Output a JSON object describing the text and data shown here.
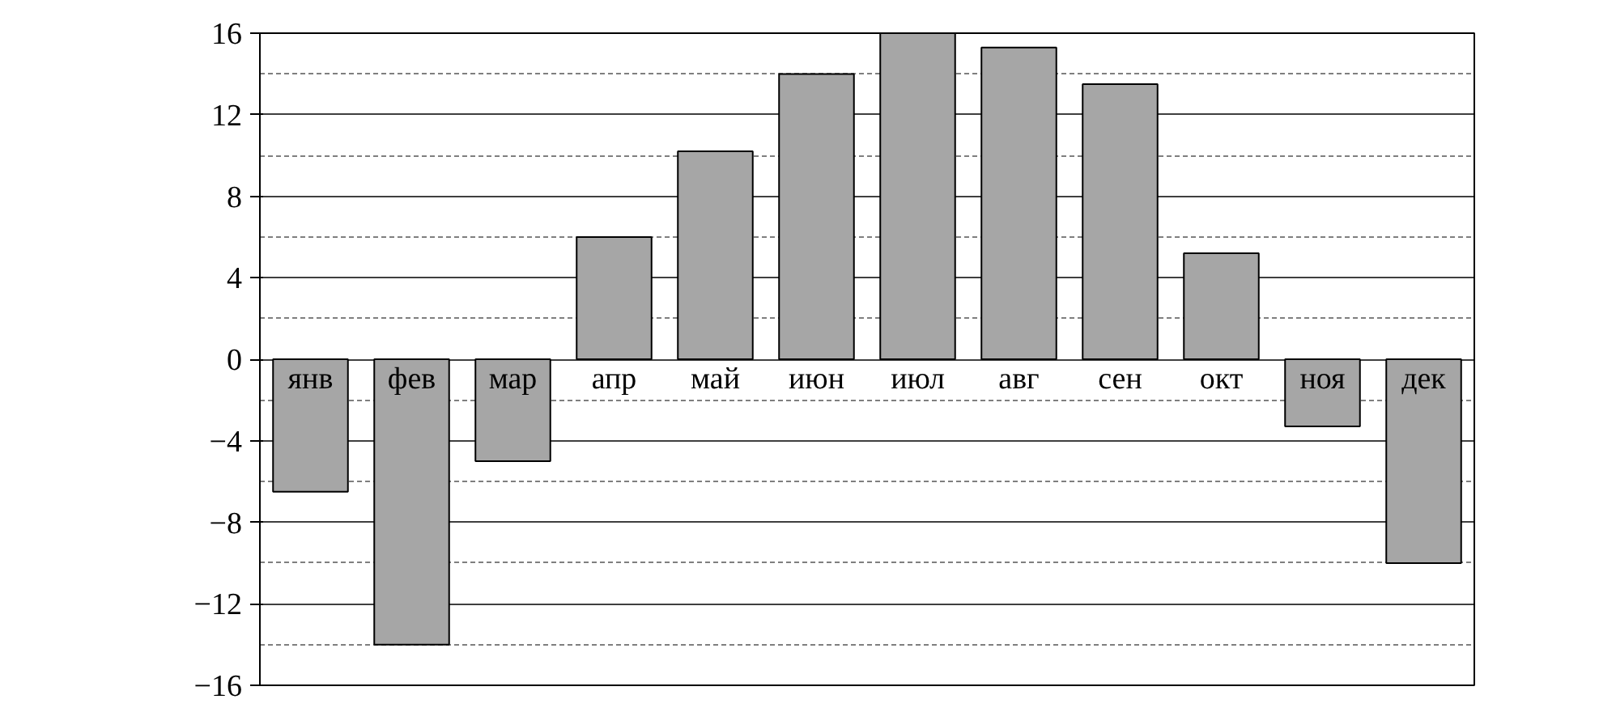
{
  "chart_data": {
    "type": "bar",
    "categories": [
      "янв",
      "фев",
      "мар",
      "апр",
      "май",
      "июн",
      "июл",
      "авг",
      "сен",
      "окт",
      "ноя",
      "дек"
    ],
    "values": [
      -6.5,
      -14,
      -5,
      6,
      10.2,
      14,
      16,
      15.3,
      13.5,
      5.2,
      -3.3,
      -10
    ],
    "color": "#a6a6a6",
    "ylim": [
      -16,
      16
    ],
    "yticks": [
      {
        "value": -16,
        "label": "−16"
      },
      {
        "value": -12,
        "label": "−12"
      },
      {
        "value": -8,
        "label": "−8"
      },
      {
        "value": -4,
        "label": "−4"
      },
      0,
      4,
      8,
      12,
      16
    ],
    "grid": "y"
  }
}
